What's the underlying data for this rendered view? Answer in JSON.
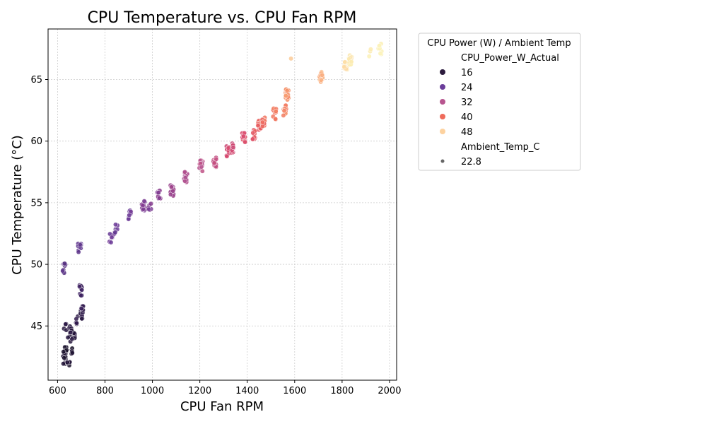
{
  "chart_data": {
    "type": "scatter",
    "title": "CPU Temperature vs. CPU Fan RPM",
    "xlabel": "CPU Fan RPM",
    "ylabel": "CPU Temperature (°C)",
    "xlim": [
      560,
      2030
    ],
    "ylim": [
      40.6,
      69.1
    ],
    "xticks": [
      600,
      800,
      1000,
      1200,
      1400,
      1600,
      1800,
      2000
    ],
    "yticks": [
      45,
      50,
      55,
      60,
      65
    ],
    "grid": true,
    "legend": {
      "title": "CPU Power (W) / Ambient Temp",
      "placement": "outside-right",
      "hue_header": "CPU_Power_W_Actual",
      "hue_entries": [
        {
          "label": "16",
          "color": "#2c1b3d"
        },
        {
          "label": "24",
          "color": "#6a3d9a"
        },
        {
          "label": "32",
          "color": "#b7558f"
        },
        {
          "label": "40",
          "color": "#ef6b5b"
        },
        {
          "label": "48",
          "color": "#fdd29f"
        }
      ],
      "size_header": "Ambient_Temp_C",
      "size_entries": [
        {
          "label": "22.8",
          "color": "#666666"
        }
      ]
    },
    "color_scale": {
      "stops": [
        {
          "power": 12,
          "color": "#0d0a1a"
        },
        {
          "power": 18,
          "color": "#3a1f5c"
        },
        {
          "power": 24,
          "color": "#6a3d9a"
        },
        {
          "power": 28,
          "color": "#8e3a8a"
        },
        {
          "power": 32,
          "color": "#b7558f"
        },
        {
          "power": 36,
          "color": "#d8466a"
        },
        {
          "power": 40,
          "color": "#ef6b5b"
        },
        {
          "power": 44,
          "color": "#f89d6e"
        },
        {
          "power": 48,
          "color": "#fdd29f"
        },
        {
          "power": 52,
          "color": "#fcefb3"
        },
        {
          "power": 56,
          "color": "#fcf8c4"
        }
      ]
    },
    "clusters": [
      {
        "x": 628,
        "y": 42.2,
        "p": 14,
        "n": 8
      },
      {
        "x": 645,
        "y": 42.1,
        "p": 14,
        "n": 6
      },
      {
        "x": 632,
        "y": 43.1,
        "p": 14,
        "n": 8
      },
      {
        "x": 660,
        "y": 43.0,
        "p": 14,
        "n": 5
      },
      {
        "x": 648,
        "y": 44.0,
        "p": 15,
        "n": 6
      },
      {
        "x": 668,
        "y": 44.1,
        "p": 15,
        "n": 8
      },
      {
        "x": 634,
        "y": 45.0,
        "p": 15,
        "n": 4
      },
      {
        "x": 655,
        "y": 44.8,
        "p": 15,
        "n": 7
      },
      {
        "x": 683,
        "y": 45.6,
        "p": 16,
        "n": 6
      },
      {
        "x": 700,
        "y": 45.8,
        "p": 16,
        "n": 6
      },
      {
        "x": 702,
        "y": 46.5,
        "p": 17,
        "n": 8
      },
      {
        "x": 696,
        "y": 47.9,
        "p": 18,
        "n": 10
      },
      {
        "x": 628,
        "y": 49.7,
        "p": 22,
        "n": 10
      },
      {
        "x": 692,
        "y": 51.4,
        "p": 23,
        "n": 12
      },
      {
        "x": 826,
        "y": 52.2,
        "p": 24,
        "n": 8
      },
      {
        "x": 846,
        "y": 52.9,
        "p": 24,
        "n": 8
      },
      {
        "x": 906,
        "y": 54.0,
        "p": 25,
        "n": 9
      },
      {
        "x": 962,
        "y": 54.8,
        "p": 26,
        "n": 14
      },
      {
        "x": 988,
        "y": 54.5,
        "p": 26,
        "n": 6
      },
      {
        "x": 1028,
        "y": 55.6,
        "p": 27,
        "n": 10
      },
      {
        "x": 1083,
        "y": 56.0,
        "p": 29,
        "n": 14
      },
      {
        "x": 1140,
        "y": 57.1,
        "p": 31,
        "n": 20
      },
      {
        "x": 1205,
        "y": 58.0,
        "p": 32,
        "n": 12
      },
      {
        "x": 1263,
        "y": 58.3,
        "p": 33,
        "n": 14
      },
      {
        "x": 1318,
        "y": 59.2,
        "p": 35,
        "n": 14
      },
      {
        "x": 1340,
        "y": 59.5,
        "p": 35,
        "n": 10
      },
      {
        "x": 1385,
        "y": 60.3,
        "p": 37,
        "n": 10
      },
      {
        "x": 1430,
        "y": 60.6,
        "p": 38,
        "n": 10
      },
      {
        "x": 1452,
        "y": 61.3,
        "p": 39,
        "n": 18
      },
      {
        "x": 1470,
        "y": 61.5,
        "p": 40,
        "n": 12
      },
      {
        "x": 1515,
        "y": 62.2,
        "p": 41,
        "n": 10
      },
      {
        "x": 1558,
        "y": 62.5,
        "p": 42,
        "n": 14
      },
      {
        "x": 1568,
        "y": 63.8,
        "p": 43,
        "n": 22
      },
      {
        "x": 1712,
        "y": 65.2,
        "p": 46,
        "n": 18
      },
      {
        "x": 1815,
        "y": 66.0,
        "p": 50,
        "n": 22
      },
      {
        "x": 1835,
        "y": 66.6,
        "p": 51,
        "n": 18
      },
      {
        "x": 1960,
        "y": 67.5,
        "p": 53,
        "n": 8
      },
      {
        "x": 1915,
        "y": 67.3,
        "p": 52,
        "n": 3
      },
      {
        "x": 1580,
        "y": 67.0,
        "p": 48,
        "n": 1
      }
    ]
  }
}
